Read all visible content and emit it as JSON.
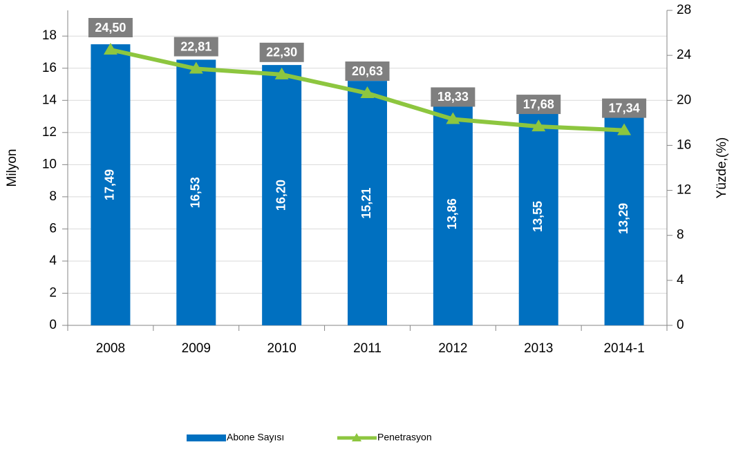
{
  "chart_data": {
    "type": "bar_line",
    "categories": [
      "2008",
      "2009",
      "2010",
      "2011",
      "2012",
      "2013",
      "2014-1"
    ],
    "series": [
      {
        "name": "Abone Sayısı",
        "type": "bar",
        "color": "#0070c0",
        "axis": "y",
        "values": [
          17.49,
          16.53,
          16.2,
          15.21,
          13.86,
          13.55,
          13.29
        ],
        "value_labels": [
          "17,49",
          "16,53",
          "16,20",
          "15,21",
          "13,86",
          "13,55",
          "13,29"
        ]
      },
      {
        "name": "Penetrasyon",
        "type": "line",
        "color": "#8dc63f",
        "axis": "y2",
        "values": [
          24.5,
          22.81,
          22.3,
          20.63,
          18.33,
          17.68,
          17.34
        ],
        "value_labels": [
          "24,50",
          "22,81",
          "22,30",
          "20,63",
          "18,33",
          "17,68",
          "17,34"
        ]
      }
    ],
    "ylabel": "Milyon",
    "y2label": "Yüzde,(%)",
    "ylim": [
      0,
      19.6
    ],
    "yticks": [
      0,
      2,
      4,
      6,
      8,
      10,
      12,
      14,
      16,
      18
    ],
    "y2lim": [
      0,
      28
    ],
    "y2ticks": [
      0,
      4,
      8,
      12,
      16,
      20,
      24,
      28
    ],
    "grid": true,
    "legend": "bottom"
  }
}
